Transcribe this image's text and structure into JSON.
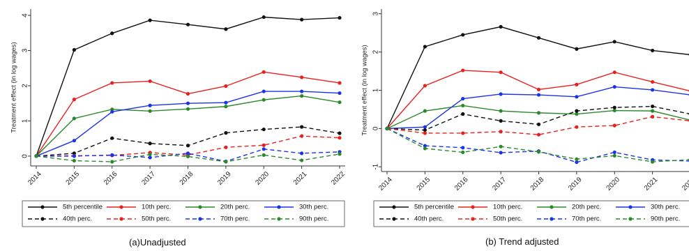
{
  "captions": {
    "left": "(a)Unadjusted",
    "right": "(b) Trend adjusted"
  },
  "legend_colors": {
    "black": "#111111",
    "red": "#e8201e",
    "green": "#2a8a2a",
    "blue": "#1a33e8"
  },
  "chart_data": [
    {
      "type": "line",
      "title": "",
      "xlabel": "",
      "ylabel": "Treatment effect (in log wages)",
      "x": [
        2014,
        2015,
        2016,
        2017,
        2018,
        2019,
        2020,
        2021,
        2022
      ],
      "ylim": [
        -0.2,
        4.1
      ],
      "yticks": [
        0,
        1,
        2,
        3,
        4
      ],
      "grid": false,
      "legend_position": "bottom",
      "series": [
        {
          "name": "5th percentile",
          "color": "#111111",
          "dash": "solid",
          "values": [
            0,
            3.02,
            3.49,
            3.86,
            3.74,
            3.61,
            3.95,
            3.88,
            3.93
          ]
        },
        {
          "name": "10th perc.",
          "color": "#e8201e",
          "dash": "solid",
          "values": [
            0,
            1.61,
            2.08,
            2.13,
            1.77,
            1.99,
            2.39,
            2.24,
            2.08
          ]
        },
        {
          "name": "20th perc.",
          "color": "#2a8a2a",
          "dash": "solid",
          "values": [
            0,
            1.07,
            1.33,
            1.28,
            1.34,
            1.41,
            1.6,
            1.71,
            1.53
          ]
        },
        {
          "name": "30th perc.",
          "color": "#1a33e8",
          "dash": "solid",
          "values": [
            0,
            0.44,
            1.26,
            1.44,
            1.5,
            1.52,
            1.84,
            1.84,
            1.79
          ]
        },
        {
          "name": "40th perc.",
          "color": "#111111",
          "dash": "dashed",
          "values": [
            0,
            0.08,
            0.51,
            0.36,
            0.3,
            0.66,
            0.76,
            0.83,
            0.65
          ]
        },
        {
          "name": "50th perc.",
          "color": "#e8201e",
          "dash": "dashed",
          "values": [
            0,
            0.01,
            0.02,
            0.1,
            0.03,
            0.25,
            0.31,
            0.57,
            0.52
          ]
        },
        {
          "name": "70th perc.",
          "color": "#1a33e8",
          "dash": "dashed",
          "values": [
            0,
            0.0,
            0.03,
            -0.04,
            0.08,
            -0.15,
            0.2,
            0.08,
            0.12
          ]
        },
        {
          "name": "90th perc.",
          "color": "#2a8a2a",
          "dash": "dashed",
          "values": [
            0,
            -0.13,
            -0.16,
            0.05,
            -0.01,
            -0.16,
            0.03,
            -0.12,
            0.06
          ]
        }
      ]
    },
    {
      "type": "line",
      "title": "",
      "xlabel": "",
      "ylabel": "Treatment effect (in log wages)",
      "x": [
        2014,
        2015,
        2016,
        2017,
        2018,
        2019,
        2020,
        2021,
        2022
      ],
      "ylim": [
        -1.05,
        3.05
      ],
      "yticks": [
        -1,
        0,
        1,
        2,
        3
      ],
      "grid": false,
      "legend_position": "bottom",
      "series": [
        {
          "name": "5th percentile",
          "color": "#111111",
          "dash": "solid",
          "values": [
            0,
            2.14,
            2.45,
            2.66,
            2.37,
            2.08,
            2.27,
            2.04,
            1.93
          ]
        },
        {
          "name": "10th perc.",
          "color": "#e8201e",
          "dash": "solid",
          "values": [
            0,
            1.12,
            1.52,
            1.47,
            1.02,
            1.15,
            1.47,
            1.22,
            0.98
          ]
        },
        {
          "name": "20th perc.",
          "color": "#2a8a2a",
          "dash": "solid",
          "values": [
            0,
            0.46,
            0.6,
            0.46,
            0.41,
            0.38,
            0.47,
            0.46,
            0.22
          ]
        },
        {
          "name": "30th perc.",
          "color": "#1a33e8",
          "dash": "solid",
          "values": [
            0,
            0.04,
            0.78,
            0.9,
            0.88,
            0.83,
            1.09,
            1.01,
            0.88
          ]
        },
        {
          "name": "40th perc.",
          "color": "#111111",
          "dash": "dashed",
          "values": [
            0,
            -0.04,
            0.38,
            0.2,
            0.11,
            0.46,
            0.55,
            0.58,
            0.38
          ]
        },
        {
          "name": "50th perc.",
          "color": "#e8201e",
          "dash": "dashed",
          "values": [
            0,
            -0.12,
            -0.12,
            -0.08,
            -0.16,
            0.04,
            0.08,
            0.31,
            0.2
          ]
        },
        {
          "name": "70th perc.",
          "color": "#1a33e8",
          "dash": "dashed",
          "values": [
            0,
            -0.45,
            -0.5,
            -0.63,
            -0.59,
            -0.88,
            -0.62,
            -0.82,
            -0.85
          ]
        },
        {
          "name": "90th perc.",
          "color": "#2a8a2a",
          "dash": "dashed",
          "values": [
            0,
            -0.52,
            -0.62,
            -0.47,
            -0.61,
            -0.8,
            -0.71,
            -0.87,
            -0.81
          ]
        }
      ]
    }
  ]
}
